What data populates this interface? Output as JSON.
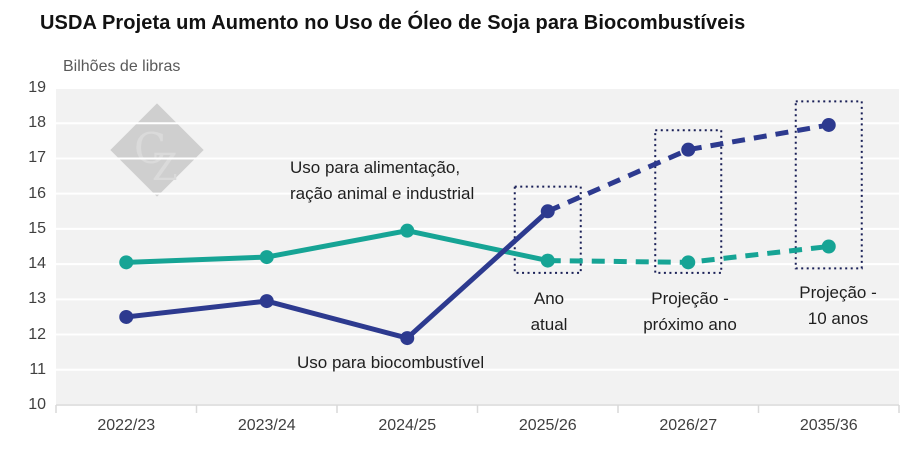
{
  "title": "USDA Projeta um Aumento no Uso de Óleo de Soja para Biocombustíveis",
  "axis_unit_label": "Bilhões de libras",
  "watermark_text": "CZ",
  "colors": {
    "plot_background": "#f2f2f2",
    "gridline": "#ffffff",
    "axis_line": "#d9d9d9",
    "teal_series": "#16a495",
    "navy_series": "#2d3a8f",
    "highlight_box_border": "#1a2057",
    "watermark_fill": "#a8a8a8",
    "watermark_letters": "#d6d6d6",
    "title_text": "#121212",
    "tick_text": "#404040",
    "unit_text": "#595959"
  },
  "chart_data": {
    "type": "line",
    "title": "USDA Projeta um Aumento no Uso de Óleo de Soja para Biocombustíveis",
    "ylabel": "Bilhões de libras",
    "xlabel": "",
    "ylim": [
      10,
      19
    ],
    "y_ticks": [
      10,
      11,
      12,
      13,
      14,
      15,
      16,
      17,
      18,
      19
    ],
    "grid": "horizontal white gridlines on light gray plot area",
    "legend_position": "inline text annotations",
    "categories": [
      "2022/23",
      "2023/24",
      "2024/25",
      "2025/26",
      "2026/27",
      "2035/36"
    ],
    "solid_until_index": 3,
    "series": [
      {
        "id": "food-feed-industrial",
        "name": "Uso para alimentação, ração animal e industrial",
        "color": "#16a495",
        "values": [
          14.05,
          14.2,
          14.95,
          14.1,
          14.05,
          14.5
        ]
      },
      {
        "id": "biofuel",
        "name": "Uso para biocombustível",
        "color": "#2d3a8f",
        "values": [
          12.5,
          12.95,
          11.9,
          15.5,
          17.25,
          17.95
        ]
      }
    ],
    "highlight_boxes": [
      {
        "category_index": 3,
        "label": "Ano\natual",
        "value_top": 16.2,
        "value_bottom": 13.75
      },
      {
        "category_index": 4,
        "label": "Projeção -\npróximo ano",
        "value_top": 17.8,
        "value_bottom": 13.75
      },
      {
        "category_index": 5,
        "label": "Projeção -\n10 anos",
        "value_top": 18.62,
        "value_bottom": 13.88
      }
    ],
    "annotations": [
      {
        "id": "food-label",
        "text": "Uso para alimentação,\nração animal e industrial"
      },
      {
        "id": "biofuel-label",
        "text": "Uso para biocombustível"
      }
    ]
  }
}
